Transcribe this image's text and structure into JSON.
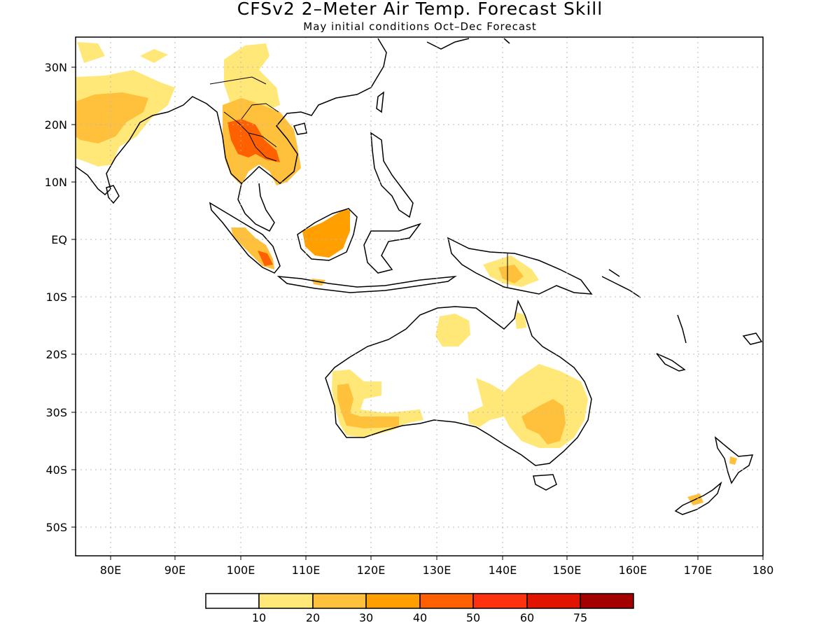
{
  "title": "CFSv2 2–Meter Air Temp. Forecast Skill",
  "subtitle": "May initial conditions  Oct–Dec Forecast",
  "lon_labels": [
    "80E",
    "90E",
    "100E",
    "110E",
    "120E",
    "130E",
    "140E",
    "150E",
    "160E",
    "170E",
    "180"
  ],
  "lat_labels": [
    "30N",
    "20N",
    "10N",
    "EQ",
    "10S",
    "20S",
    "30S",
    "40S",
    "50S"
  ],
  "colorbar": {
    "labels": [
      "10",
      "20",
      "30",
      "40",
      "50",
      "60",
      "75"
    ],
    "colors": [
      "#ffffff",
      "#ffe878",
      "#ffc03c",
      "#ffa000",
      "#ff6000",
      "#ff3210",
      "#e11400",
      "#a50000"
    ]
  },
  "skill_colors": {
    "level1": "#ffe878",
    "level2": "#ffc03c",
    "level3": "#ffa000",
    "level4": "#ff6000"
  }
}
